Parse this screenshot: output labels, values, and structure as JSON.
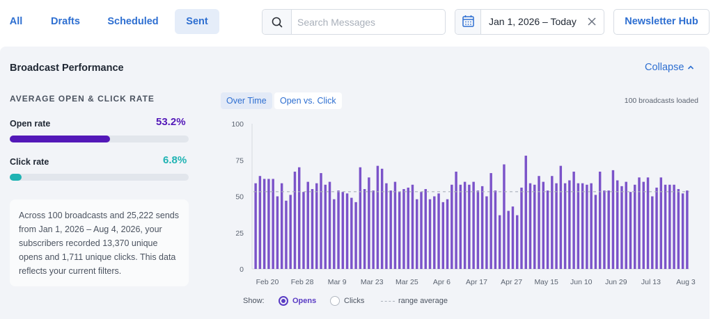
{
  "tabs": [
    {
      "label": "All",
      "active": false
    },
    {
      "label": "Drafts",
      "active": false
    },
    {
      "label": "Scheduled",
      "active": false
    },
    {
      "label": "Sent",
      "active": true
    }
  ],
  "search": {
    "placeholder": "Search Messages",
    "value": ""
  },
  "date_filter": {
    "label": "Jan 1, 2026 – Today",
    "icon": "calendar-icon",
    "clear_icon": "close-icon"
  },
  "header_button": {
    "label": "Newsletter Hub"
  },
  "panel": {
    "title": "Broadcast Performance",
    "collapse_label": "Collapse",
    "metrics_heading": "AVERAGE OPEN & CLICK RATE",
    "open_rate": {
      "label": "Open rate",
      "value": "53.2%",
      "fraction": 0.532,
      "color": "#5318b8"
    },
    "click_rate": {
      "label": "Click rate",
      "value": "6.8%",
      "fraction": 0.068,
      "color": "#1fb3b3"
    },
    "summary": "Across 100 broadcasts and 25,222 sends from Jan 1, 2026 – Aug 4, 2026, your subscribers recorded 13,370 unique opens and 1,711 unique clicks. This data reflects your current filters."
  },
  "chart_tabs": [
    {
      "label": "Over Time",
      "selected": true
    },
    {
      "label": "Open vs. Click",
      "selected": false
    }
  ],
  "loaded_text": "100 broadcasts loaded",
  "legend": {
    "show_label": "Show:",
    "opens_label": "Opens",
    "clicks_label": "Clicks",
    "average_label": "range average",
    "opens_selected": true
  },
  "colors": {
    "accent": "#2e6fd1",
    "bar": "#7b53c9",
    "radio": "#5a3cc4"
  },
  "chart_data": {
    "type": "bar",
    "ylim": [
      0,
      100
    ],
    "yticks": [
      0,
      25,
      50,
      75,
      100
    ],
    "xtick_labels": [
      "Feb 20",
      "Feb 28",
      "Mar 9",
      "Mar 23",
      "Mar 25",
      "Apr 6",
      "Apr 17",
      "Apr 27",
      "May 15",
      "Jun 10",
      "Jun 29",
      "Jul 13",
      "Aug 3"
    ],
    "average": 53.2,
    "series": [
      {
        "values": [
          59,
          64,
          62,
          62,
          62,
          50,
          59,
          47,
          51,
          67,
          70,
          53,
          60,
          55,
          59,
          66,
          58,
          60,
          48,
          54,
          53,
          52,
          49,
          46,
          70,
          55,
          63,
          54,
          71,
          69,
          59,
          54,
          60,
          53,
          55,
          56,
          58,
          48,
          53,
          55,
          48,
          50,
          52,
          46,
          48,
          58,
          67,
          58,
          60,
          58,
          60,
          54,
          57,
          50,
          66,
          54,
          37,
          72,
          40,
          43,
          37,
          56,
          78,
          59,
          58,
          64,
          60,
          54,
          64,
          59,
          71,
          59,
          61,
          67,
          59,
          59,
          58,
          59,
          51,
          67,
          54,
          54,
          68,
          61,
          57,
          60,
          53,
          58,
          63,
          60,
          63,
          50,
          56,
          63,
          58,
          58,
          58,
          55,
          52,
          54
        ]
      }
    ]
  }
}
